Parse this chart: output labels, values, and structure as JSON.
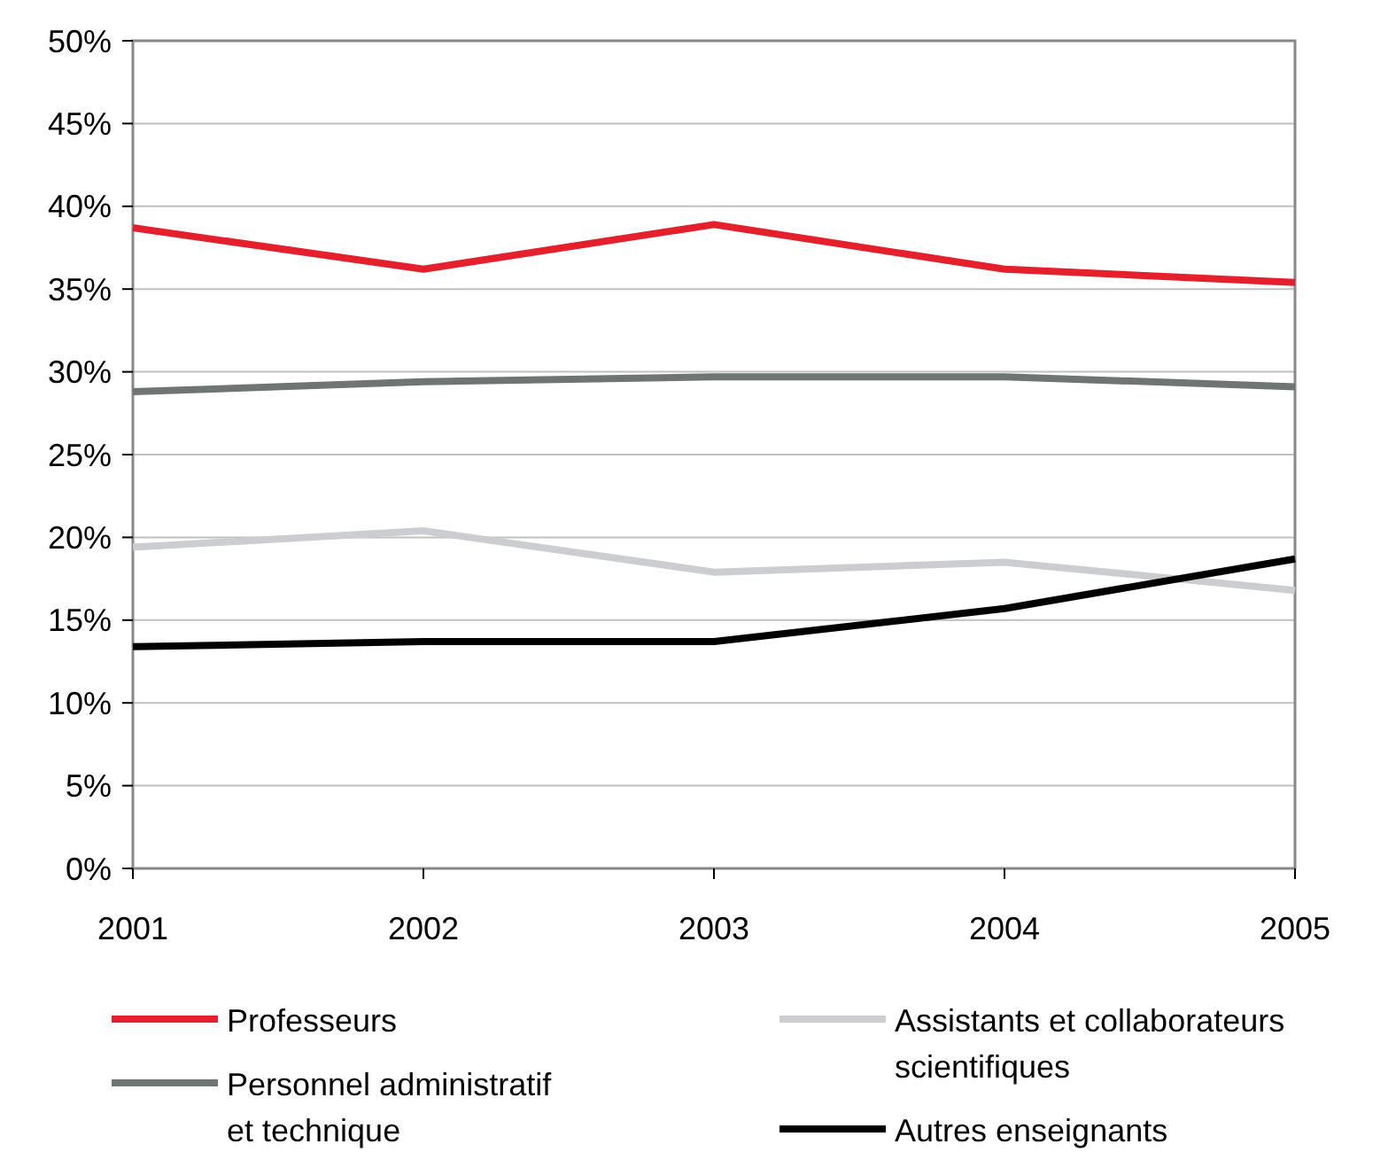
{
  "chart_data": {
    "type": "line",
    "x": [
      2001,
      2002,
      2003,
      2004,
      2005
    ],
    "series": [
      {
        "name": "Professeurs",
        "color": "#e3202b",
        "values": [
          38.7,
          36.2,
          38.9,
          36.2,
          35.4
        ]
      },
      {
        "name": "Personnel administratif et technique",
        "color": "#6f7572",
        "values": [
          28.8,
          29.4,
          29.7,
          29.7,
          29.1
        ]
      },
      {
        "name": "Assistants et collaborateurs scientifiques",
        "color": "#cbcdd1",
        "values": [
          19.4,
          20.4,
          17.9,
          18.5,
          16.8
        ]
      },
      {
        "name": "Autres enseignants",
        "color": "#000000",
        "values": [
          13.4,
          13.7,
          13.7,
          15.7,
          18.7
        ]
      }
    ],
    "ylim": [
      0,
      50
    ],
    "yticks": [
      {
        "value": 0,
        "label": "0%"
      },
      {
        "value": 5,
        "label": "5%"
      },
      {
        "value": 10,
        "label": "10%"
      },
      {
        "value": 15,
        "label": "15%"
      },
      {
        "value": 20,
        "label": "20%"
      },
      {
        "value": 25,
        "label": "25%"
      },
      {
        "value": 30,
        "label": "30%"
      },
      {
        "value": 35,
        "label": "35%"
      },
      {
        "value": 40,
        "label": "40%"
      },
      {
        "value": 45,
        "label": "45%"
      },
      {
        "value": 50,
        "label": "50%"
      }
    ],
    "xticks": [
      2001,
      2002,
      2003,
      2004,
      2005
    ],
    "xlim": [
      2001,
      2005
    ],
    "grid": "y",
    "legend": "bottom",
    "marker": "none",
    "line_style": "solid"
  }
}
